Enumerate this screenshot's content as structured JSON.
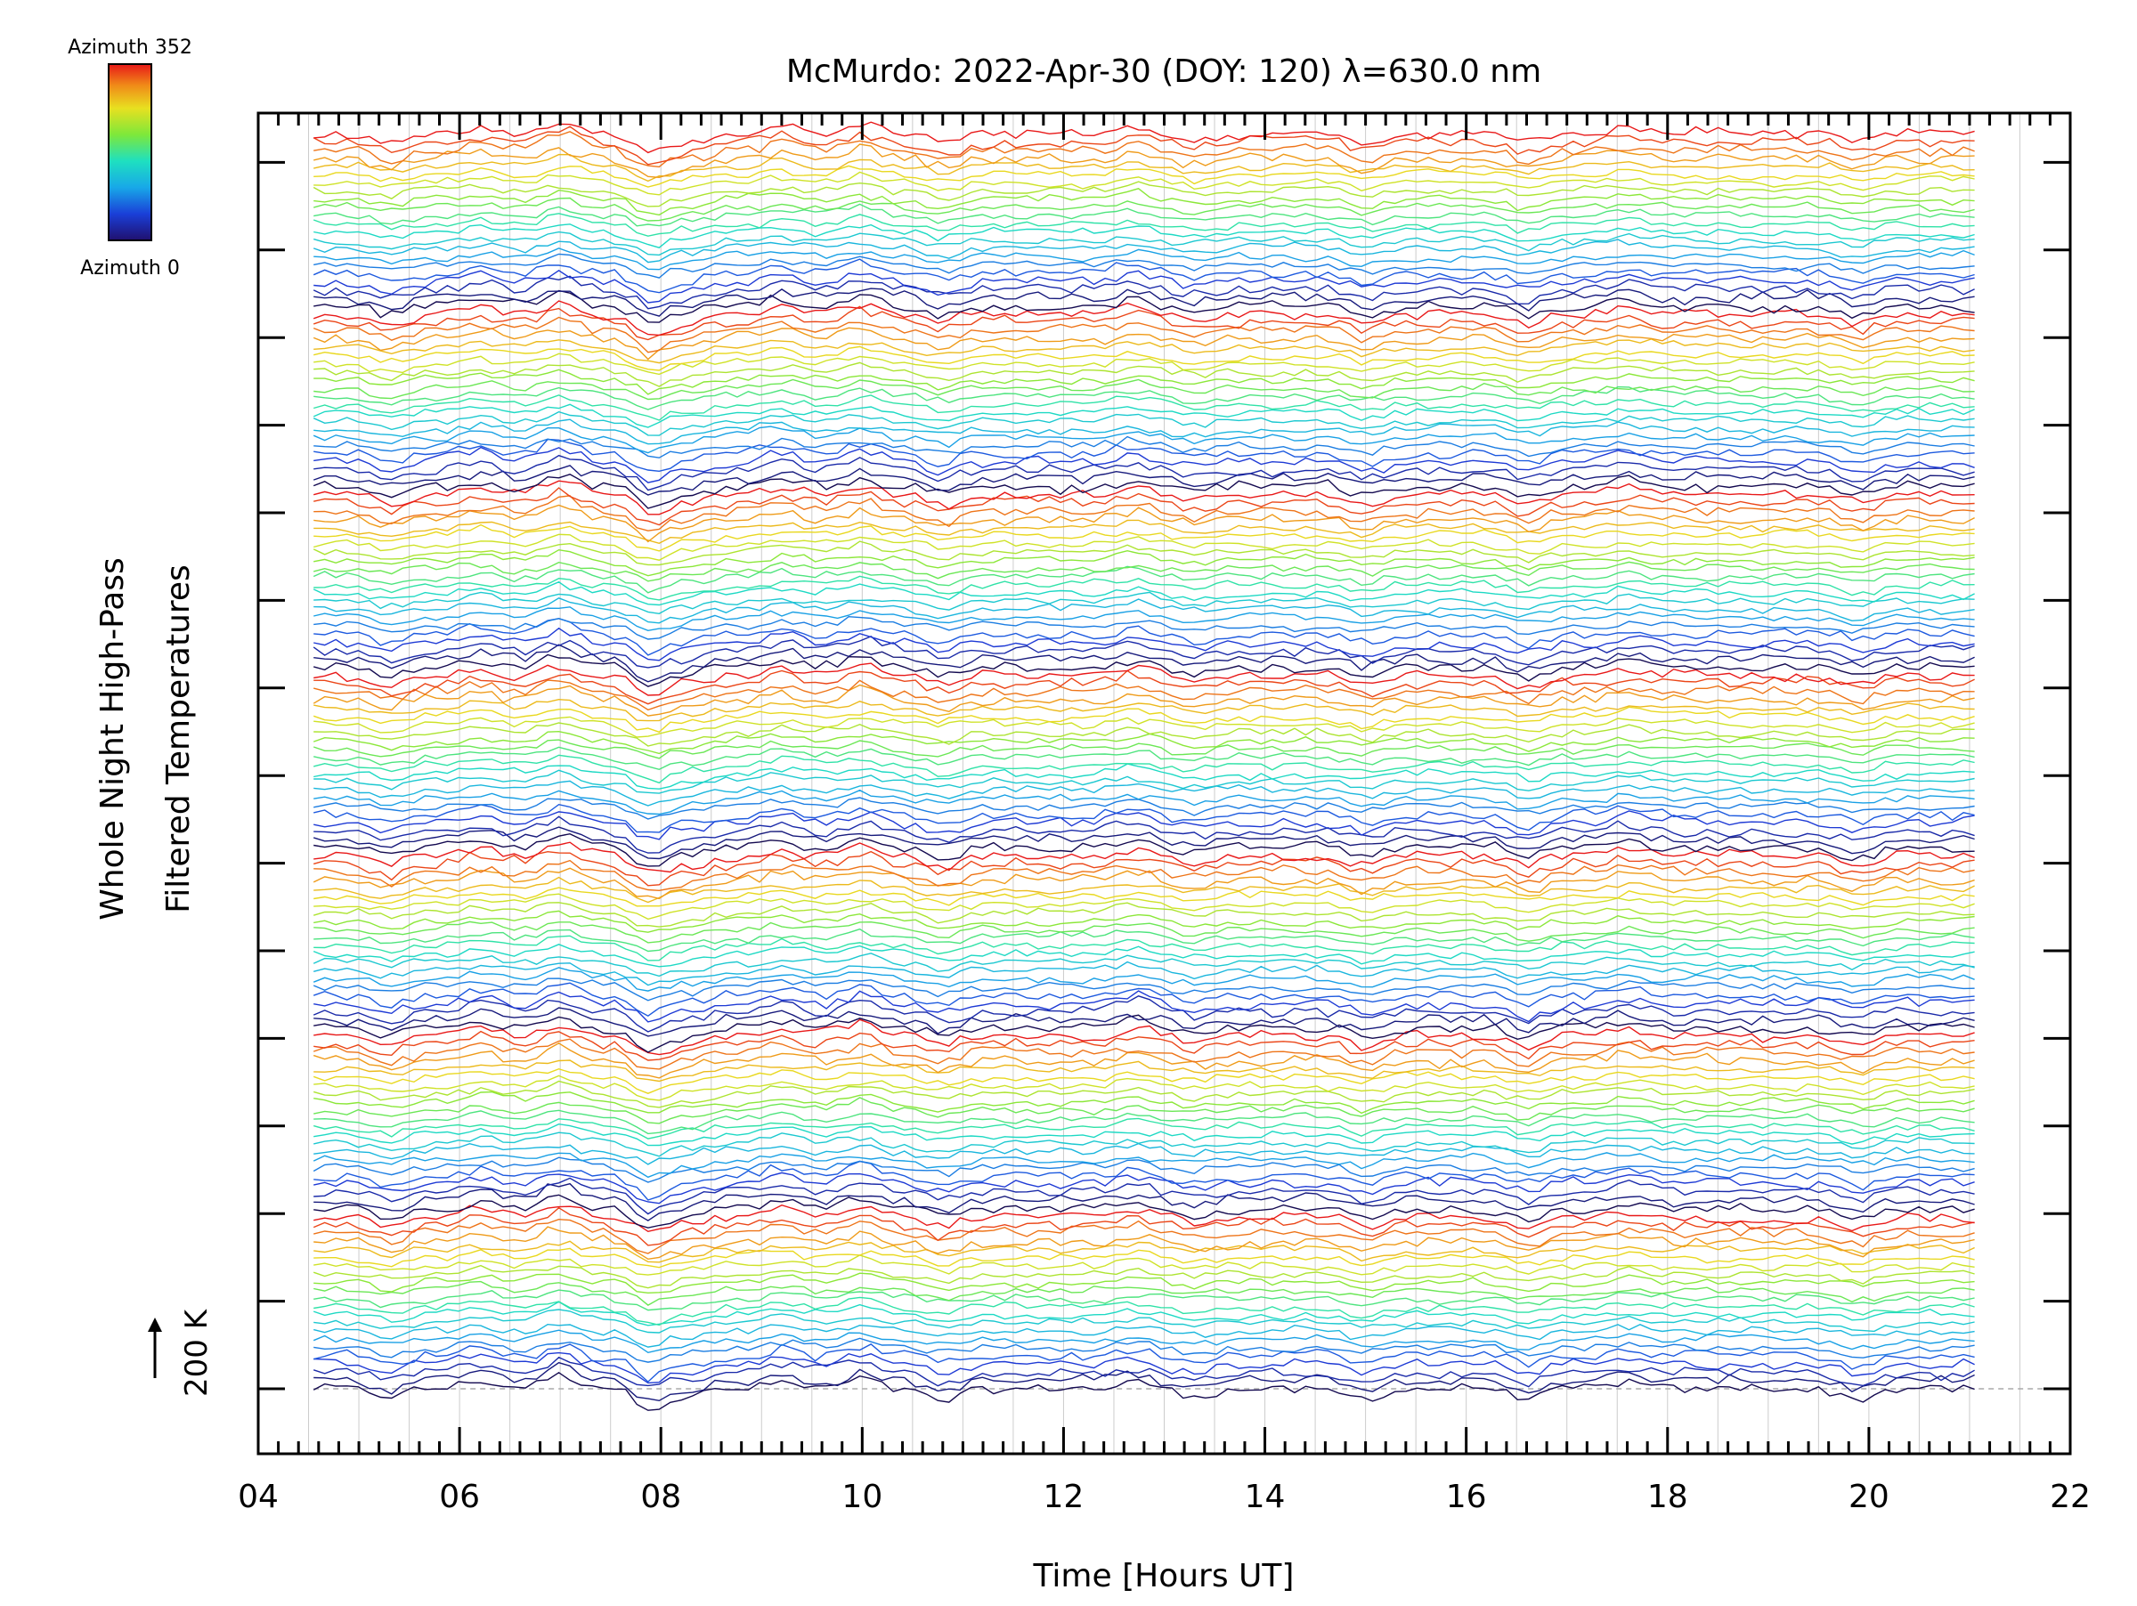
{
  "chart_data": {
    "type": "line",
    "title": "McMurdo: 2022-Apr-30 (DOY: 120) λ=630.0 nm",
    "xlabel": "Time [Hours UT]",
    "ylabel_lines": [
      "Whole Night High-Pass",
      "Filtered Temperatures"
    ],
    "xlim": [
      4,
      22
    ],
    "x_ticks": [
      "04",
      "06",
      "08",
      "10",
      "12",
      "14",
      "16",
      "18",
      "20",
      "22"
    ],
    "x_range_data": [
      4.55,
      21.05
    ],
    "scale_bar_label": "200 K",
    "colorbar": {
      "top_label": "Azimuth 352",
      "bottom_label": "Azimuth 0",
      "colormap": "rainbow",
      "min": 0,
      "max": 352
    },
    "series_pattern": {
      "groups": 7,
      "traces_per_group": 22,
      "baseline_K": 200,
      "trace_offset_K": 20
    },
    "grid": "vertical",
    "colors": {
      "axis": "#000000",
      "grid": "#cccccc"
    }
  }
}
